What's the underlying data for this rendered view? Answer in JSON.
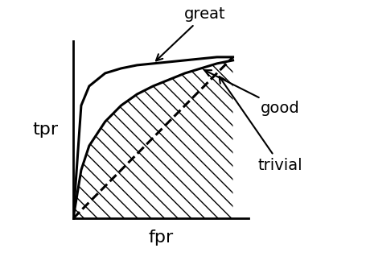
{
  "chart_data": {
    "type": "line",
    "x_label": "fpr",
    "y_label": "tpr",
    "x": [
      0,
      0.05,
      0.1,
      0.2,
      0.3,
      0.4,
      0.5,
      0.6,
      0.7,
      0.8,
      0.9,
      1.0
    ],
    "series": [
      {
        "name": "great",
        "color": "#000000",
        "line_style": "solid",
        "values": [
          0,
          0.7,
          0.82,
          0.9,
          0.93,
          0.95,
          0.96,
          0.97,
          0.98,
          0.99,
          1.0,
          1.0
        ]
      },
      {
        "name": "good",
        "color": "#000000",
        "line_style": "solid",
        "values": [
          0,
          0.3,
          0.45,
          0.6,
          0.7,
          0.77,
          0.82,
          0.86,
          0.9,
          0.93,
          0.96,
          0.98
        ]
      },
      {
        "name": "trivial",
        "color": "#000000",
        "line_style": "dashed",
        "values": [
          0,
          0.05,
          0.1,
          0.2,
          0.3,
          0.4,
          0.5,
          0.6,
          0.7,
          0.8,
          0.9,
          1.0
        ]
      }
    ],
    "xlim": [
      0,
      1.1
    ],
    "ylim": [
      0,
      1.1
    ],
    "tick_labels": false,
    "grid": false
  }
}
